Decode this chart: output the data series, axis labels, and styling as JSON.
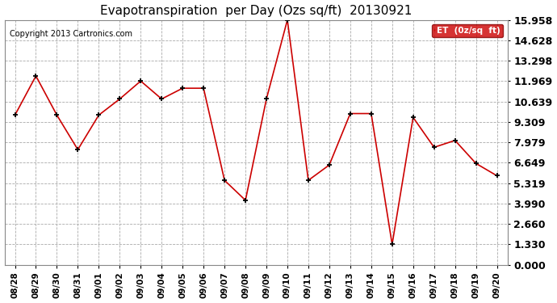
{
  "title": "Evapotranspiration  per Day (Ozs sq/ft)  20130921",
  "copyright": "Copyright 2013 Cartronics.com",
  "legend_label": "ET  (0z/sq  ft)",
  "x_labels": [
    "08/28",
    "08/29",
    "08/30",
    "08/31",
    "09/01",
    "09/02",
    "09/03",
    "09/04",
    "09/05",
    "09/06",
    "09/07",
    "09/08",
    "09/09",
    "09/10",
    "09/11",
    "09/12",
    "09/13",
    "09/14",
    "09/15",
    "09/16",
    "09/17",
    "09/18",
    "09/19",
    "09/20"
  ],
  "y_values": [
    9.75,
    12.3,
    9.75,
    7.5,
    9.75,
    10.8,
    11.97,
    10.8,
    11.5,
    11.5,
    5.5,
    4.2,
    10.8,
    15.95,
    5.5,
    6.5,
    9.85,
    9.85,
    1.33,
    9.6,
    7.65,
    8.1,
    6.6,
    5.8
  ],
  "y_ticks": [
    0.0,
    1.33,
    2.66,
    3.99,
    5.319,
    6.649,
    7.979,
    9.309,
    10.639,
    11.969,
    13.298,
    14.628,
    15.958
  ],
  "y_min": 0.0,
  "y_max": 15.958,
  "line_color": "#cc0000",
  "marker_color": "#000000",
  "bg_color": "#ffffff",
  "grid_color": "#aaaaaa",
  "legend_bg": "#cc0000",
  "legend_text_color": "#ffffff",
  "title_fontsize": 11,
  "copyright_fontsize": 7,
  "tick_fontsize": 7.5,
  "ytick_fontsize": 9
}
